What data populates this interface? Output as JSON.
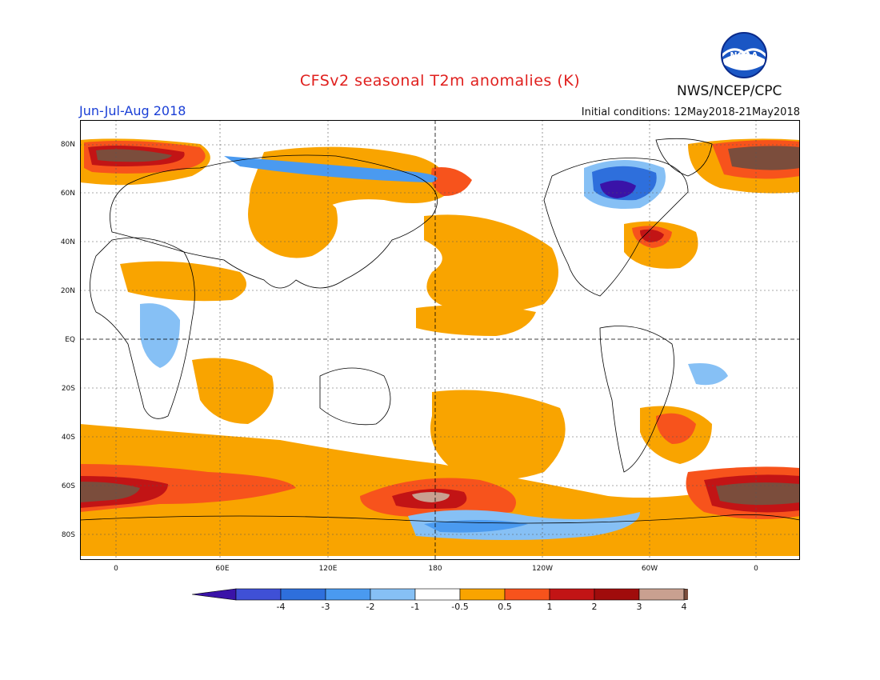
{
  "header": {
    "title": "CFSv2 seasonal T2m anomalies (K)",
    "agency": "NWS/NCEP/CPC",
    "logo_text": "NOAA",
    "season": "Jun-Jul-Aug 2018",
    "initial_conditions": "Initial conditions: 12May2018-21May2018"
  },
  "axes": {
    "lat_labels": [
      "80N",
      "60N",
      "40N",
      "20N",
      "EQ",
      "20S",
      "40S",
      "60S",
      "80S"
    ],
    "lon_labels": [
      "0",
      "60E",
      "120E",
      "180",
      "120W",
      "60W",
      "0"
    ]
  },
  "colorbar": {
    "labels": [
      "-4",
      "-3",
      "-2",
      "-1",
      "-0.5",
      "0.5",
      "1",
      "2",
      "3",
      "4"
    ],
    "colors": [
      "#3a13a8",
      "#3f50d6",
      "#2e6fdc",
      "#4a9af0",
      "#86c0f5",
      "#ffffff",
      "#f9a400",
      "#f7531c",
      "#c21415",
      "#a00c0c",
      "#c9a090",
      "#7b4d3c"
    ]
  },
  "colors": {
    "title": "#e0201e",
    "season": "#1a3fd6",
    "warm1": "#f9a400",
    "warm2": "#f7531c",
    "warm3": "#c21415",
    "warm4": "#c9a090",
    "warm5": "#7b4d3c",
    "cool1": "#86c0f5",
    "cool2": "#4a9af0",
    "cool3": "#2e6fdc",
    "cool4": "#3f50d6"
  }
}
